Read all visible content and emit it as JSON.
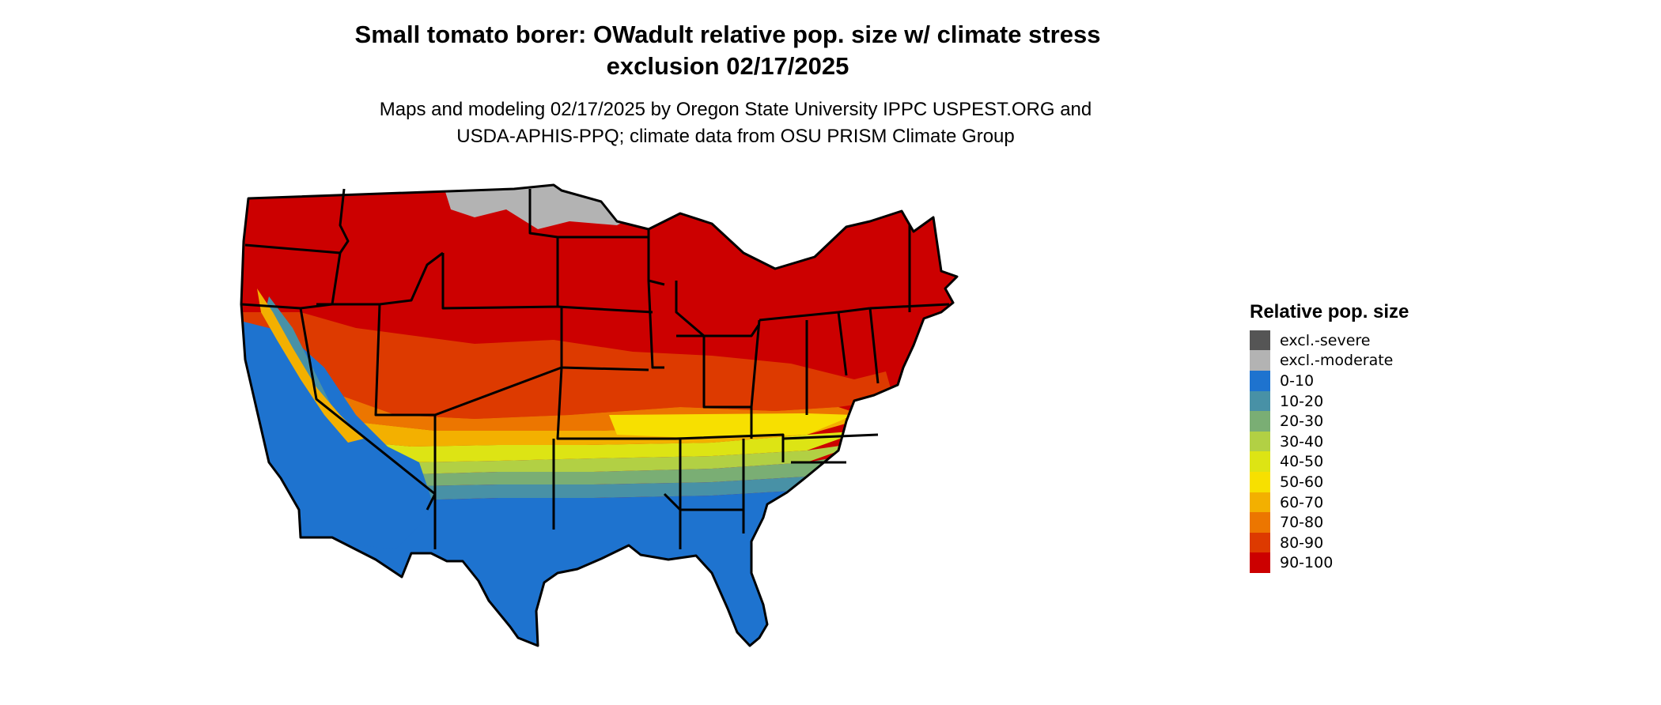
{
  "title": {
    "line1": "Small tomato borer: OWadult relative pop. size w/ climate stress",
    "line2": "exclusion 02/17/2025"
  },
  "subtitle": {
    "line1": "Maps and modeling 02/17/2025 by Oregon State University IPPC USPEST.ORG and",
    "line2": "USDA-APHIS-PPQ; climate data from OSU PRISM Climate Group"
  },
  "legend": {
    "title": "Relative pop. size",
    "items": [
      {
        "label": "excl.-severe",
        "color": "#555555"
      },
      {
        "label": "excl.-moderate",
        "color": "#b3b3b3"
      },
      {
        "label": "0-10",
        "color": "#1e73cf"
      },
      {
        "label": "10-20",
        "color": "#4891a6"
      },
      {
        "label": "20-30",
        "color": "#7aae74"
      },
      {
        "label": "30-40",
        "color": "#b2d044"
      },
      {
        "label": "40-50",
        "color": "#dde414"
      },
      {
        "label": "50-60",
        "color": "#f7e000"
      },
      {
        "label": "60-70",
        "color": "#f3b000"
      },
      {
        "label": "70-80",
        "color": "#ec7600"
      },
      {
        "label": "80-90",
        "color": "#dd3a00"
      },
      {
        "label": "90-100",
        "color": "#cc0000"
      }
    ]
  }
}
